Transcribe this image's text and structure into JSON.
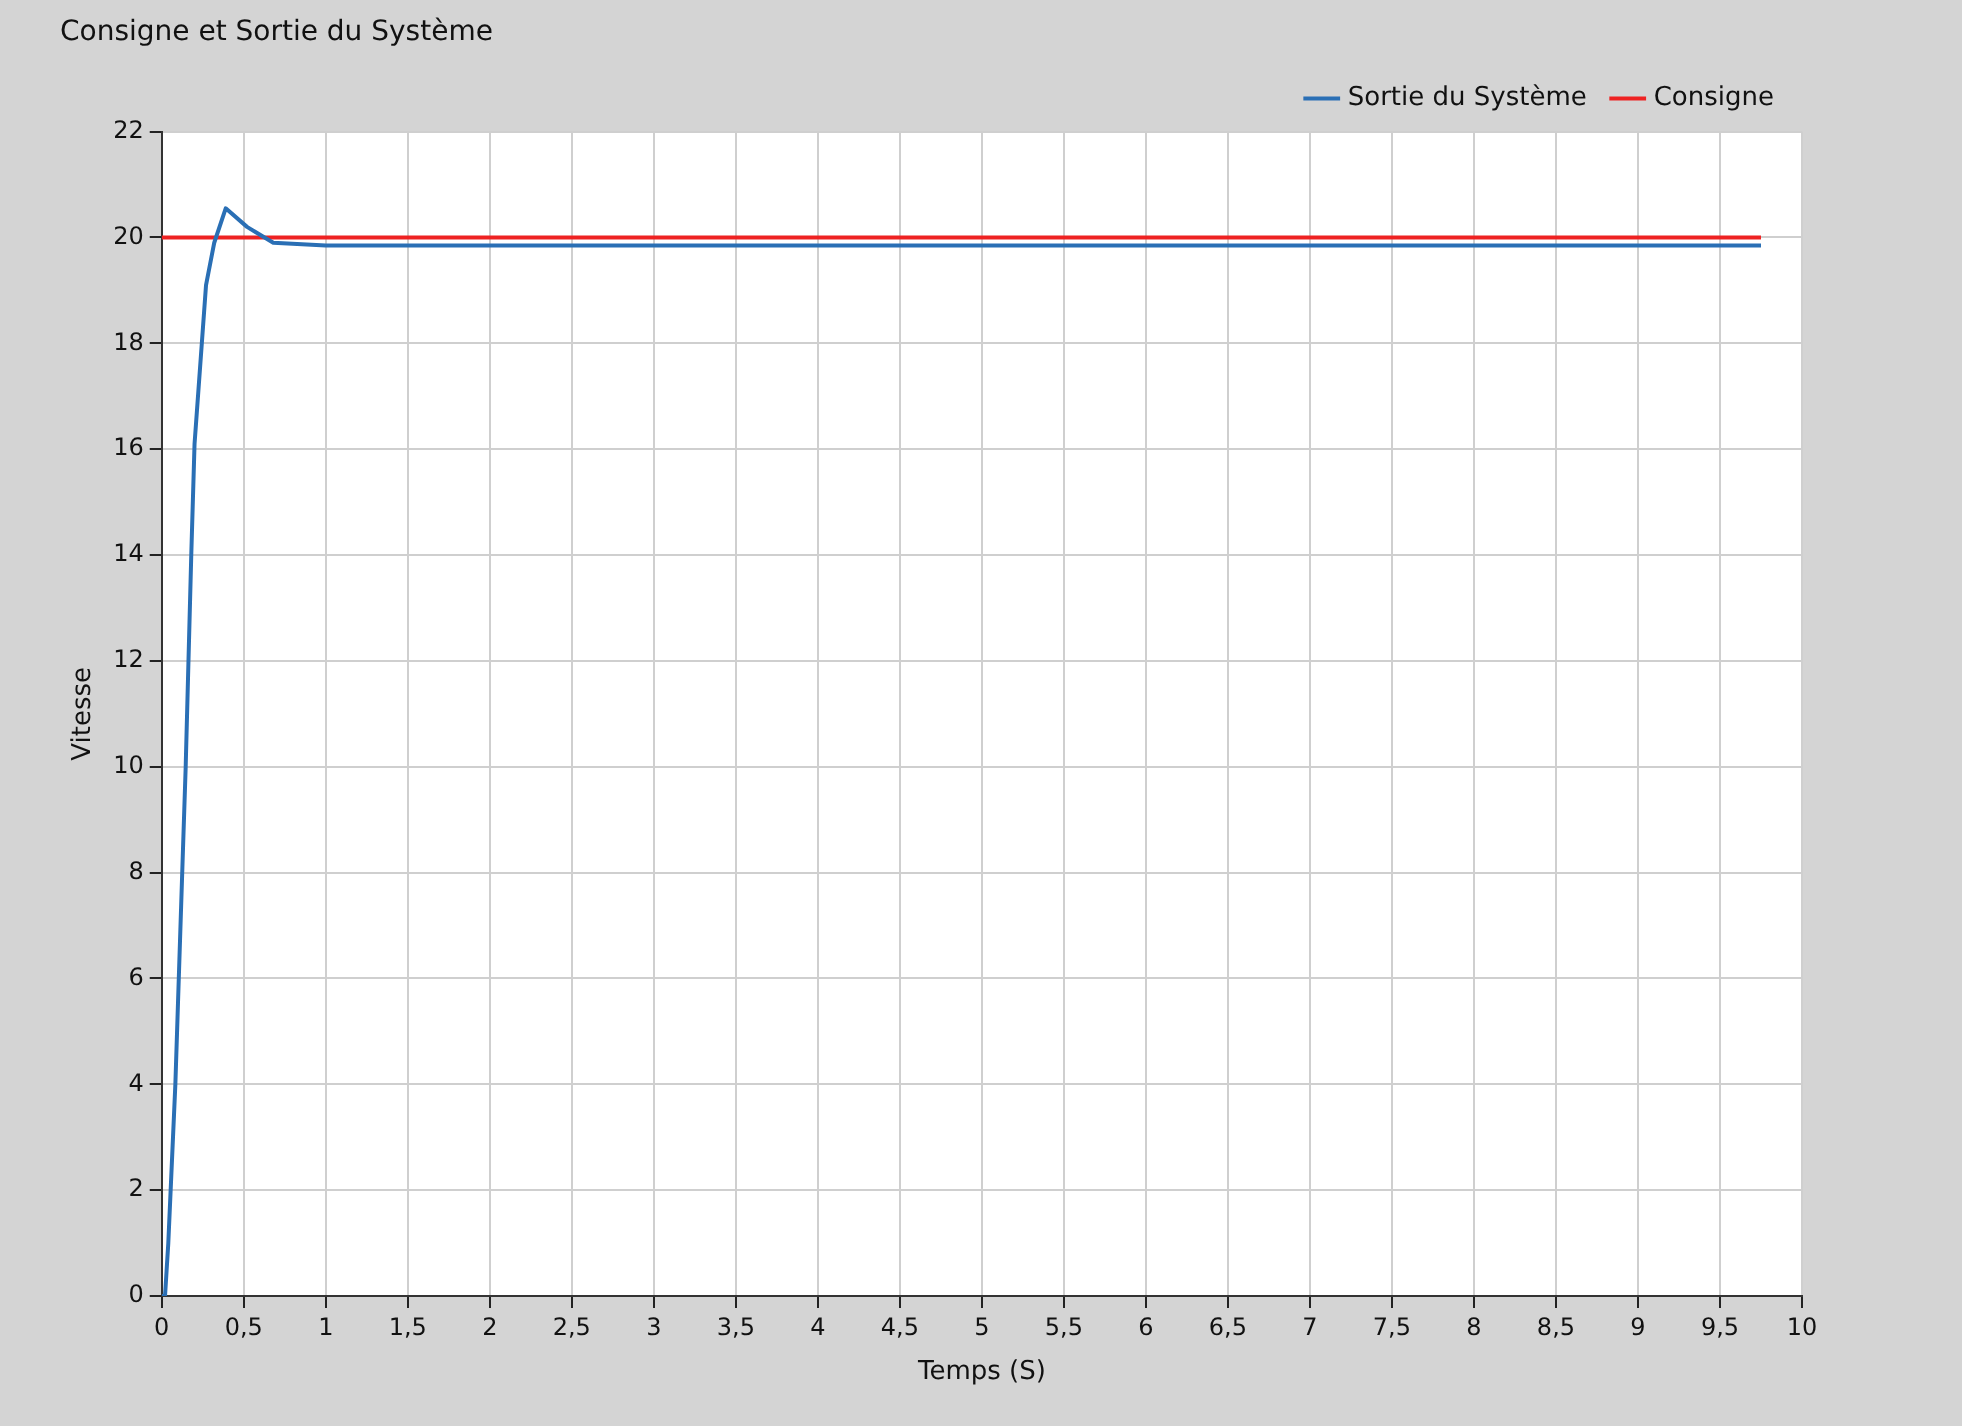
{
  "chart_data": {
    "type": "line",
    "title": "Consigne et Sortie du Système",
    "xlabel": "Temps (S)",
    "ylabel": "Vitesse",
    "xlim": [
      0,
      10
    ],
    "ylim": [
      0,
      22
    ],
    "xticks": [
      0,
      {
        "value": 0.5,
        "label": "0,5"
      },
      1,
      {
        "value": 1.5,
        "label": "1,5"
      },
      2,
      {
        "value": 2.5,
        "label": "2,5"
      },
      3,
      {
        "value": 3.5,
        "label": "3,5"
      },
      4,
      {
        "value": 4.5,
        "label": "4,5"
      },
      5,
      {
        "value": 5.5,
        "label": "5,5"
      },
      6,
      {
        "value": 6.5,
        "label": "6,5"
      },
      7,
      {
        "value": 7.5,
        "label": "7,5"
      },
      8,
      {
        "value": 8.5,
        "label": "8,5"
      },
      9,
      {
        "value": 9.5,
        "label": "9,5"
      },
      10
    ],
    "yticks": [
      0,
      2,
      4,
      6,
      8,
      10,
      12,
      14,
      16,
      18,
      20,
      22
    ],
    "grid": true,
    "legend": "top right",
    "marker": "none",
    "line_style": "solid",
    "series": [
      {
        "name": "Sortie du Système",
        "color": "#2a6fb5",
        "x": [
          0,
          0.02,
          0.04,
          0.083,
          0.128,
          0.146,
          0.18,
          0.2,
          0.27,
          0.32,
          0.39,
          0.52,
          0.68,
          1,
          3,
          5,
          7,
          9,
          9.75
        ],
        "values": [
          0,
          0,
          1,
          4,
          8.3,
          10,
          14,
          16.1,
          19.1,
          19.9,
          20.55,
          20.2,
          19.9,
          19.85,
          19.85,
          19.85,
          19.85,
          19.85,
          19.85
        ]
      },
      {
        "name": "Consigne",
        "color": "#ee2222",
        "x": [
          0,
          9.75
        ],
        "values": [
          20,
          20
        ]
      }
    ]
  }
}
